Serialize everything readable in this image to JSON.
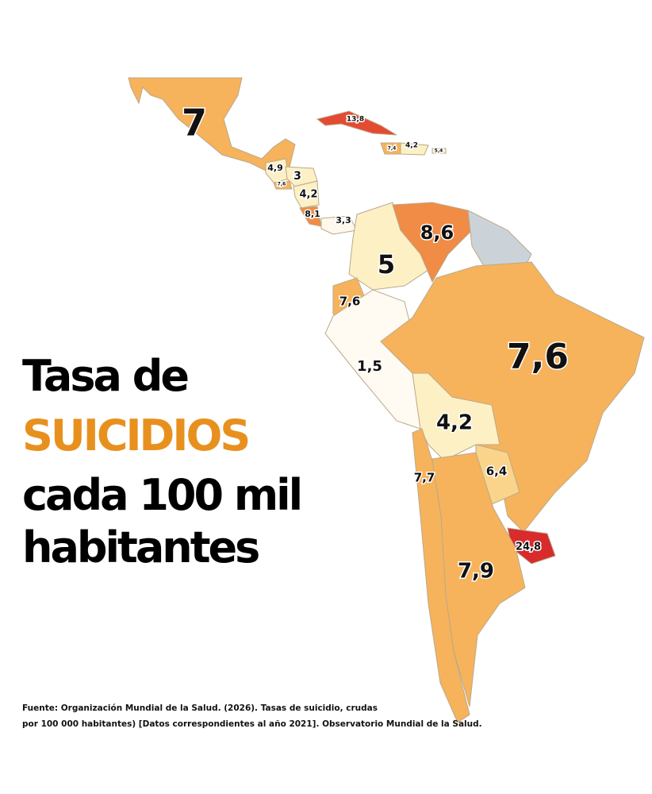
{
  "title": {
    "line1": "Tasa de",
    "line2": "SUICIDIOS",
    "line3": "cada 100 mil",
    "line4": "habitantes"
  },
  "source": {
    "line1": "Fuente: Organización Mundial de la Salud. (2026). Tasas de suicidio, crudas",
    "line2": "por 100 000 habitantes) [Datos correspondientes al año 2021]. Observatorio Mundial de la Salud."
  },
  "labels": [
    "7",
    "13,8",
    "7,4",
    "4,2",
    "5,4",
    "4,9",
    "3",
    "7,6",
    "4,2",
    "8,1",
    "3,3",
    "8,6",
    "5",
    "7,6",
    "1,5",
    "7,6",
    "4,2",
    "6,4",
    "7,7",
    "24,8",
    "7,9"
  ]
}
